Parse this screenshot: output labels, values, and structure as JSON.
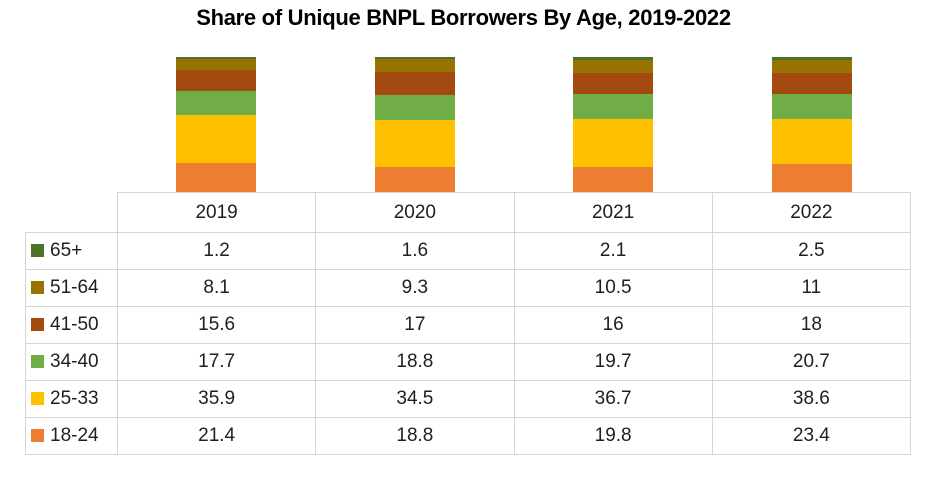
{
  "chart_data": {
    "type": "bar",
    "subtype": "stacked-percent-style",
    "title": "Share of Unique BNPL Borrowers By Age, 2019-2022",
    "categories": [
      "2019",
      "2020",
      "2021",
      "2022"
    ],
    "series": [
      {
        "name": "18-24",
        "color": "#ED7D31",
        "values": [
          21.4,
          18.8,
          19.8,
          23.4
        ]
      },
      {
        "name": "25-33",
        "color": "#FFC000",
        "values": [
          35.9,
          34.5,
          36.7,
          38.6
        ]
      },
      {
        "name": "34-40",
        "color": "#70AD47",
        "values": [
          17.7,
          18.8,
          19.7,
          20.7
        ]
      },
      {
        "name": "41-50",
        "color": "#A24A10",
        "values": [
          15.6,
          17,
          16,
          18
        ]
      },
      {
        "name": "51-64",
        "color": "#987300",
        "values": [
          8.1,
          9.3,
          10.5,
          11
        ]
      },
      {
        "name": "65+",
        "color": "#4C7329",
        "values": [
          1.2,
          1.6,
          2.1,
          2.5
        ]
      }
    ],
    "legend_position": "data-table-left-column",
    "grid": false,
    "axes_visible": false,
    "note_colors": {
      "title_text": "#000000",
      "table_text": "#1f1f1f",
      "table_border": "#d6d6d6",
      "background": "#ffffff"
    }
  },
  "table": {
    "header": [
      "",
      "2019",
      "2020",
      "2021",
      "2022"
    ],
    "rows": [
      {
        "label": "65+",
        "values": [
          "1.2",
          "1.6",
          "2.1",
          "2.5"
        ]
      },
      {
        "label": "51-64",
        "values": [
          "8.1",
          "9.3",
          "10.5",
          "11"
        ]
      },
      {
        "label": "41-50",
        "values": [
          "15.6",
          "17",
          "16",
          "18"
        ]
      },
      {
        "label": "34-40",
        "values": [
          "17.7",
          "18.8",
          "19.7",
          "20.7"
        ]
      },
      {
        "label": "25-33",
        "values": [
          "35.9",
          "34.5",
          "36.7",
          "38.6"
        ]
      },
      {
        "label": "18-24",
        "values": [
          "21.4",
          "18.8",
          "19.8",
          "23.4"
        ]
      }
    ]
  }
}
